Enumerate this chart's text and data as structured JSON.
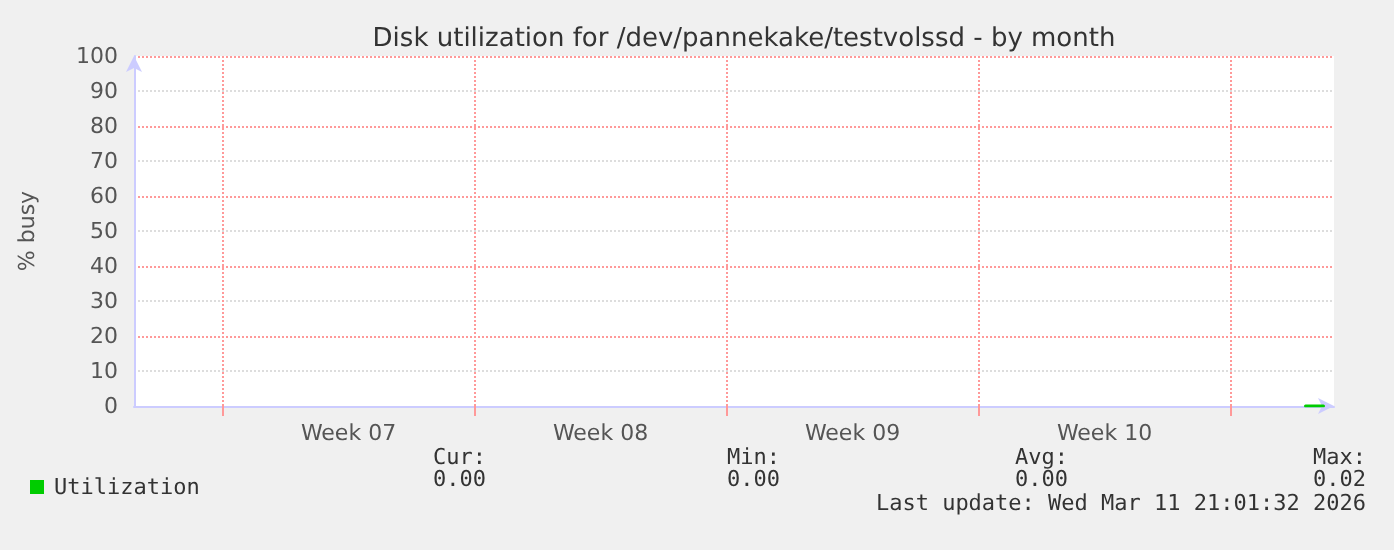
{
  "chart_data": {
    "type": "line",
    "title": "Disk utilization for /dev/pannekake/testvolssd - by month",
    "ylabel": "% busy",
    "x": [
      "2026-03-11T02:00",
      "2026-03-11T08:00",
      "2026-03-11T14:00"
    ],
    "series": [
      {
        "name": "Utilization",
        "color": "#00cc00",
        "values": [
          0,
          0,
          0
        ]
      }
    ],
    "xlim": [
      "2026-02-06T13:00",
      "2026-03-11T21:00"
    ],
    "xticks": [
      {
        "value": "2026-02-09",
        "label": null
      },
      {
        "value": "2026-02-12T12:00",
        "label": "Week 07"
      },
      {
        "value": "2026-02-16",
        "label": null
      },
      {
        "value": "2026-02-19T12:00",
        "label": "Week 08"
      },
      {
        "value": "2026-02-23",
        "label": null
      },
      {
        "value": "2026-02-26T12:00",
        "label": "Week 09"
      },
      {
        "value": "2026-03-02",
        "label": null
      },
      {
        "value": "2026-03-05T12:00",
        "label": "Week 10"
      },
      {
        "value": "2026-03-09",
        "label": null
      }
    ],
    "ylim": [
      0,
      100
    ],
    "yticks": [
      0,
      10,
      20,
      30,
      40,
      50,
      60,
      70,
      80,
      90,
      100
    ],
    "grid": true,
    "legend": "bottom left",
    "marker": "none",
    "line_style": "solid",
    "annotations": [
      "Cur:",
      "0.00",
      "Min:",
      "0.00",
      "Avg:",
      "0.00",
      "Max:",
      "0.02",
      "Last update: Wed Mar 11 21:01:32 2026"
    ]
  }
}
